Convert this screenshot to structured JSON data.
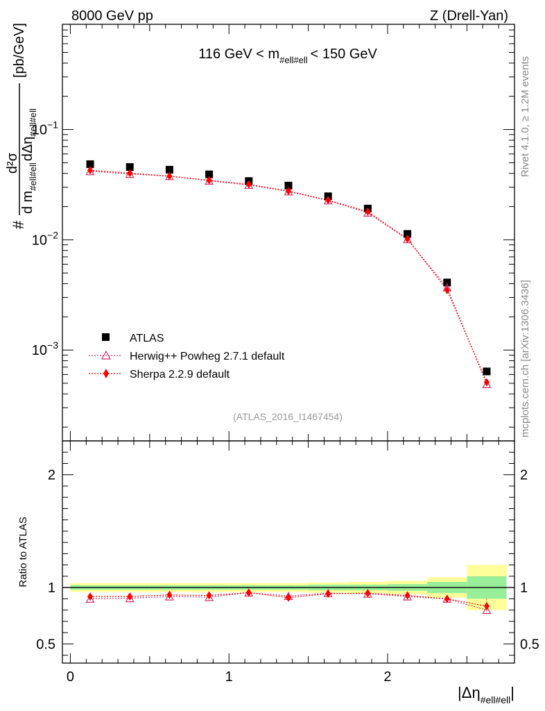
{
  "header": {
    "left": "8000 GeV pp",
    "right": "Z (Drell-Yan)"
  },
  "side_labels": {
    "rivet": "Rivet 4.1.0, ≥ 1.2M events",
    "mcplots": "mcplots.cern.ch [arXiv:1306.3436]"
  },
  "chart_data": {
    "type": "scatter",
    "title": "116 GeV < m_#ell#ell < 150 GeV",
    "title_parts": {
      "left": "116 GeV < m",
      "sub": "#ell#ell",
      "right": "< 150 GeV"
    },
    "analysis_id": "(ATLAS_2016_I1467454)",
    "ylabel_parts": {
      "hash": "#",
      "num": "d²σ",
      "den_a": "d m",
      "den_a_sub": "#ell#ell",
      "den_b": "dΔη",
      "den_b_sub": "#ell#ell",
      "units": "[pb/GeV]"
    },
    "xlabel_parts": {
      "main": "|Δη",
      "sub": "#ell#ell",
      "end": "|"
    },
    "ratio_ylabel": "Ratio to ATLAS",
    "xlim": [
      -0.05,
      2.8
    ],
    "ylim": [
      0.00015,
      0.9
    ],
    "ratio_ylim": [
      0.33,
      2.3
    ],
    "y_ticks": [
      {
        "value": 0.1,
        "base": "10",
        "exp": "−1"
      },
      {
        "value": 0.01,
        "base": "10",
        "exp": "−2"
      },
      {
        "value": 0.001,
        "base": "10",
        "exp": "−3"
      }
    ],
    "x_ticks": [
      {
        "value": 0,
        "label": "0"
      },
      {
        "value": 1,
        "label": "1"
      },
      {
        "value": 2,
        "label": "2"
      }
    ],
    "ratio_ticks": [
      {
        "value": 0.5,
        "label": "0.5"
      },
      {
        "value": 1,
        "label": "1"
      },
      {
        "value": 2,
        "label": "2"
      }
    ],
    "bins": [
      {
        "lo": 0.0,
        "hi": 0.25,
        "x": 0.125
      },
      {
        "lo": 0.25,
        "hi": 0.5,
        "x": 0.375
      },
      {
        "lo": 0.5,
        "hi": 0.75,
        "x": 0.625
      },
      {
        "lo": 0.75,
        "hi": 1.0,
        "x": 0.875
      },
      {
        "lo": 1.0,
        "hi": 1.25,
        "x": 1.125
      },
      {
        "lo": 1.25,
        "hi": 1.5,
        "x": 1.375
      },
      {
        "lo": 1.5,
        "hi": 1.75,
        "x": 1.625
      },
      {
        "lo": 1.75,
        "hi": 2.0,
        "x": 1.875
      },
      {
        "lo": 2.0,
        "hi": 2.25,
        "x": 2.125
      },
      {
        "lo": 2.25,
        "hi": 2.5,
        "x": 2.375
      },
      {
        "lo": 2.5,
        "hi": 2.75,
        "x": 2.625
      }
    ],
    "series": [
      {
        "name": "ATLAS",
        "style": "data",
        "color": "#000000",
        "values": [
          0.0485,
          0.0457,
          0.0432,
          0.0392,
          0.0341,
          0.031,
          0.0248,
          0.0192,
          0.0113,
          0.0041,
          0.00064
        ],
        "ratio_band_inner": [
          0.02,
          0.02,
          0.02,
          0.02,
          0.02,
          0.02,
          0.025,
          0.025,
          0.03,
          0.05,
          0.1
        ],
        "ratio_band_outer": [
          0.04,
          0.04,
          0.04,
          0.04,
          0.04,
          0.04,
          0.045,
          0.05,
          0.06,
          0.09,
          0.2
        ]
      },
      {
        "name": "Herwig++ Powheg 2.7.1 default",
        "style": "open-triangle",
        "color": "#cc3366",
        "values": [
          0.0418,
          0.0395,
          0.0377,
          0.0343,
          0.0314,
          0.0274,
          0.0227,
          0.0176,
          0.0101,
          0.0037,
          0.00049
        ],
        "ratio": [
          0.9,
          0.905,
          0.92,
          0.915,
          0.955,
          0.925,
          0.95,
          0.945,
          0.92,
          0.9,
          0.8
        ]
      },
      {
        "name": "Sherpa 2.2.9 default",
        "style": "diamond",
        "color": "#ff0000",
        "values": [
          0.0427,
          0.0403,
          0.0378,
          0.0347,
          0.0318,
          0.0277,
          0.0229,
          0.018,
          0.0102,
          0.0035,
          0.00051
        ],
        "ratio": [
          0.92,
          0.92,
          0.935,
          0.93,
          0.955,
          0.91,
          0.945,
          0.95,
          0.93,
          0.9,
          0.835
        ]
      }
    ]
  }
}
